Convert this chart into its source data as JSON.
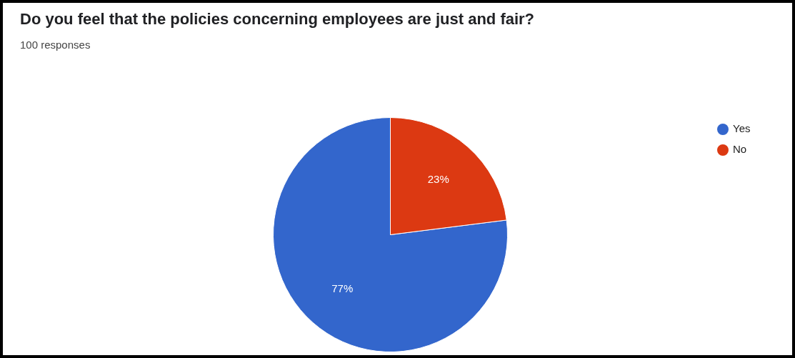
{
  "chart_data": {
    "type": "pie",
    "title": "Do you feel that the policies concerning employees are just and fair?",
    "subtitle": "100 responses",
    "categories": [
      "Yes",
      "No"
    ],
    "values": [
      77,
      23
    ],
    "colors": [
      "#3366cc",
      "#dc3912"
    ],
    "value_labels": [
      "77%",
      "23%"
    ],
    "legend": "top right"
  }
}
